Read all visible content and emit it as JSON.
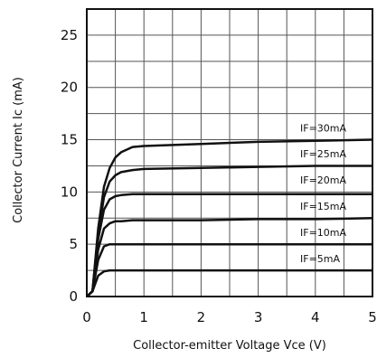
{
  "chart_data": {
    "type": "line",
    "xlabel": "Collector-emitter Voltage Vce (V)",
    "ylabel": "Collector Current Ic (mA)",
    "xlim": [
      0,
      5
    ],
    "ylim": [
      0,
      27.5
    ],
    "x_ticks": [
      "0",
      "1",
      "2",
      "3",
      "4",
      "5"
    ],
    "y_ticks": [
      "0",
      "5",
      "10",
      "15",
      "20",
      "25"
    ],
    "grid": true,
    "series": [
      {
        "name": "IF=30mA",
        "x": [
          0,
          0.1,
          0.2,
          0.3,
          0.4,
          0.5,
          0.6,
          0.8,
          1,
          2,
          3,
          4,
          5
        ],
        "values": [
          0,
          0.5,
          6.5,
          10.5,
          12.3,
          13.3,
          13.8,
          14.3,
          14.4,
          14.6,
          14.8,
          14.9,
          15.0
        ]
      },
      {
        "name": "IF=25mA",
        "x": [
          0,
          0.1,
          0.2,
          0.3,
          0.4,
          0.5,
          0.6,
          0.8,
          1,
          2,
          3,
          4,
          5
        ],
        "values": [
          0,
          0.5,
          6,
          9.5,
          11.0,
          11.6,
          11.9,
          12.1,
          12.2,
          12.3,
          12.4,
          12.5,
          12.5
        ]
      },
      {
        "name": "IF=20mA",
        "x": [
          0,
          0.1,
          0.2,
          0.3,
          0.4,
          0.5,
          0.6,
          0.8,
          1,
          2,
          3,
          4,
          5
        ],
        "values": [
          0,
          0.5,
          5.5,
          8.3,
          9.3,
          9.6,
          9.7,
          9.8,
          9.8,
          9.8,
          9.8,
          9.8,
          9.8
        ]
      },
      {
        "name": "IF=15mA",
        "x": [
          0,
          0.1,
          0.2,
          0.3,
          0.4,
          0.5,
          0.6,
          0.8,
          1,
          2,
          3,
          4,
          5
        ],
        "values": [
          0,
          0.5,
          4.5,
          6.5,
          7.0,
          7.2,
          7.2,
          7.3,
          7.3,
          7.3,
          7.4,
          7.4,
          7.5
        ]
      },
      {
        "name": "IF=10mA",
        "x": [
          0,
          0.1,
          0.2,
          0.3,
          0.4,
          0.5,
          0.6,
          0.8,
          1,
          2,
          3,
          4,
          5
        ],
        "values": [
          0,
          0.5,
          3.5,
          4.8,
          5.0,
          5.0,
          5.0,
          5.0,
          5.0,
          5.0,
          5.0,
          5.0,
          5.0
        ]
      },
      {
        "name": "IF=5mA",
        "x": [
          0,
          0.1,
          0.2,
          0.3,
          0.4,
          0.5,
          0.6,
          0.8,
          1,
          2,
          3,
          4,
          5
        ],
        "values": [
          0,
          0.5,
          2.0,
          2.4,
          2.5,
          2.5,
          2.5,
          2.5,
          2.5,
          2.5,
          2.5,
          2.5,
          2.5
        ]
      }
    ],
    "series_label_y": [
      15.8,
      13.3,
      10.8,
      8.3,
      5.8,
      3.3
    ]
  }
}
